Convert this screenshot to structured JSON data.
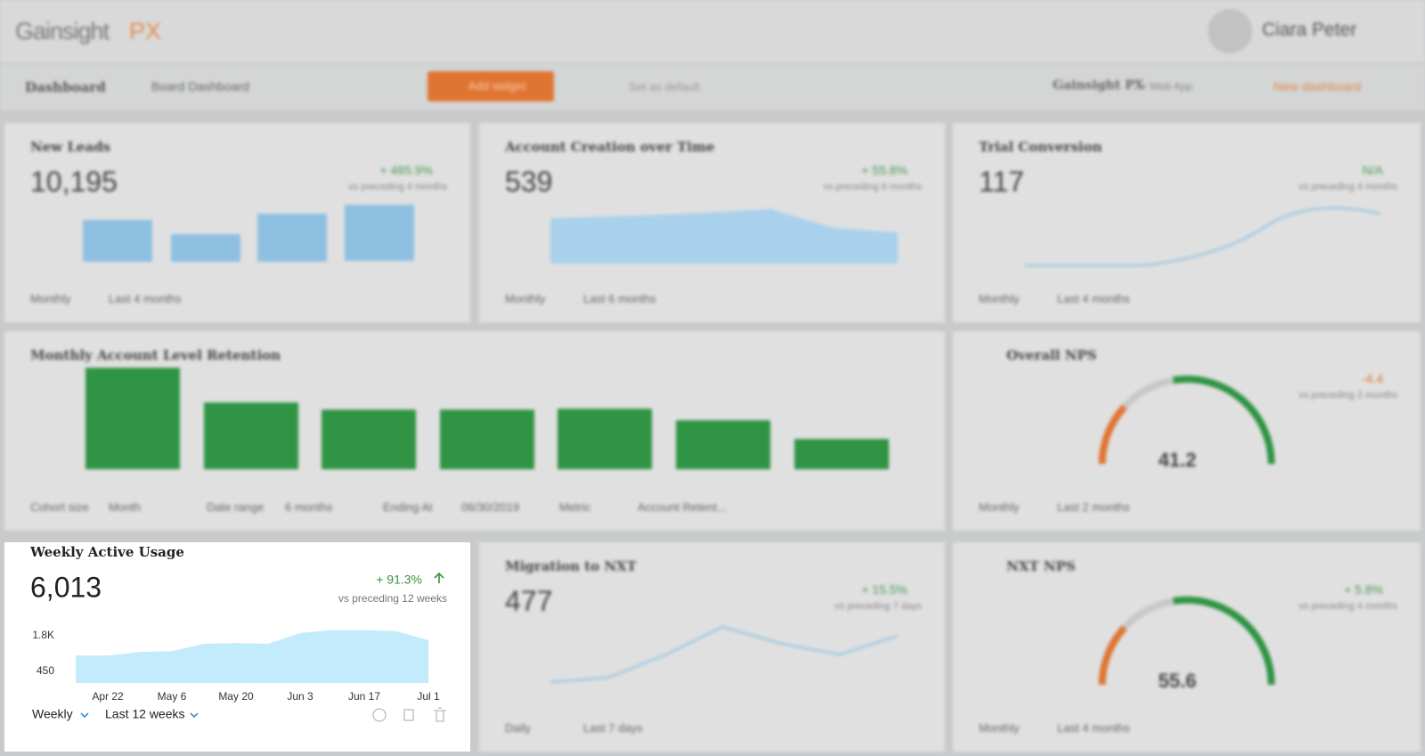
{
  "header": {
    "logo": "Gainsight",
    "logo_accent": "PX",
    "user": "Ciara Peter"
  },
  "toolbar": {
    "section": "Dashboard",
    "board": "Board Dashboard",
    "add": "Add widget",
    "default": "Set as default",
    "product": "Gainsight PX",
    "product_sub": "• Web App",
    "new": "New dashboard"
  },
  "widgets": [
    {
      "title": "New Leads",
      "value": "10,195",
      "change": "+ 485.9%",
      "compare": "vs preceding 4 months",
      "filters": [
        "Monthly",
        "Last 4 months"
      ]
    },
    {
      "title": "Account Creation over Time",
      "value": "539",
      "change": "+ 55.8%",
      "compare": "vs preceding 6 months",
      "filters": [
        "Monthly",
        "Last 6 months"
      ]
    },
    {
      "title": "Trial Conversion",
      "value": "117",
      "change": "N/A",
      "compare": "vs preceding 4 months",
      "filters": [
        "Monthly",
        "Last 4 months"
      ]
    },
    {
      "title": "Monthly Account Level Retention",
      "filters": [
        "Cohort size",
        "Month",
        "Date range",
        "6 months",
        "Ending At",
        "06/30/2019",
        "Metric",
        "Account Retent..."
      ]
    },
    {
      "title": "Overall NPS",
      "value": "41.2",
      "change": "-4.4",
      "compare": "vs preceding 2 months",
      "filters": [
        "Monthly",
        "Last 2 months"
      ]
    },
    {
      "title": "Migration to NXT",
      "value": "477",
      "change": "+ 15.5%",
      "compare": "vs preceding 7 days",
      "filters": [
        "Daily",
        "Last 7 days"
      ]
    },
    {
      "title": "NXT NPS",
      "value": "55.6",
      "change": "+ 5.8%",
      "compare": "vs preceding 4 months",
      "filters": [
        "Monthly",
        "Last 4 months"
      ]
    }
  ],
  "chart_data": {
    "type": "area",
    "title": "Weekly Active Usage",
    "value": "6,013",
    "change": "+ 91.3%",
    "compare": "vs preceding 12 weeks",
    "filters": [
      "Weekly",
      "Last 12 weeks"
    ],
    "categories": [
      null,
      "Apr 22",
      null,
      "May 6",
      null,
      "May 20",
      null,
      "Jun 3",
      null,
      "Jun 17",
      null,
      "Jul 1"
    ],
    "values": [
      1040,
      1040,
      1180,
      1210,
      1490,
      1520,
      1490,
      1900,
      2010,
      2010,
      1970,
      1630
    ],
    "color": "#c4ebfb",
    "ylim": [
      0,
      2100
    ],
    "yticks": [
      450,
      {
        "value": 1800,
        "label": "1.8K"
      }
    ],
    "grid": false
  }
}
